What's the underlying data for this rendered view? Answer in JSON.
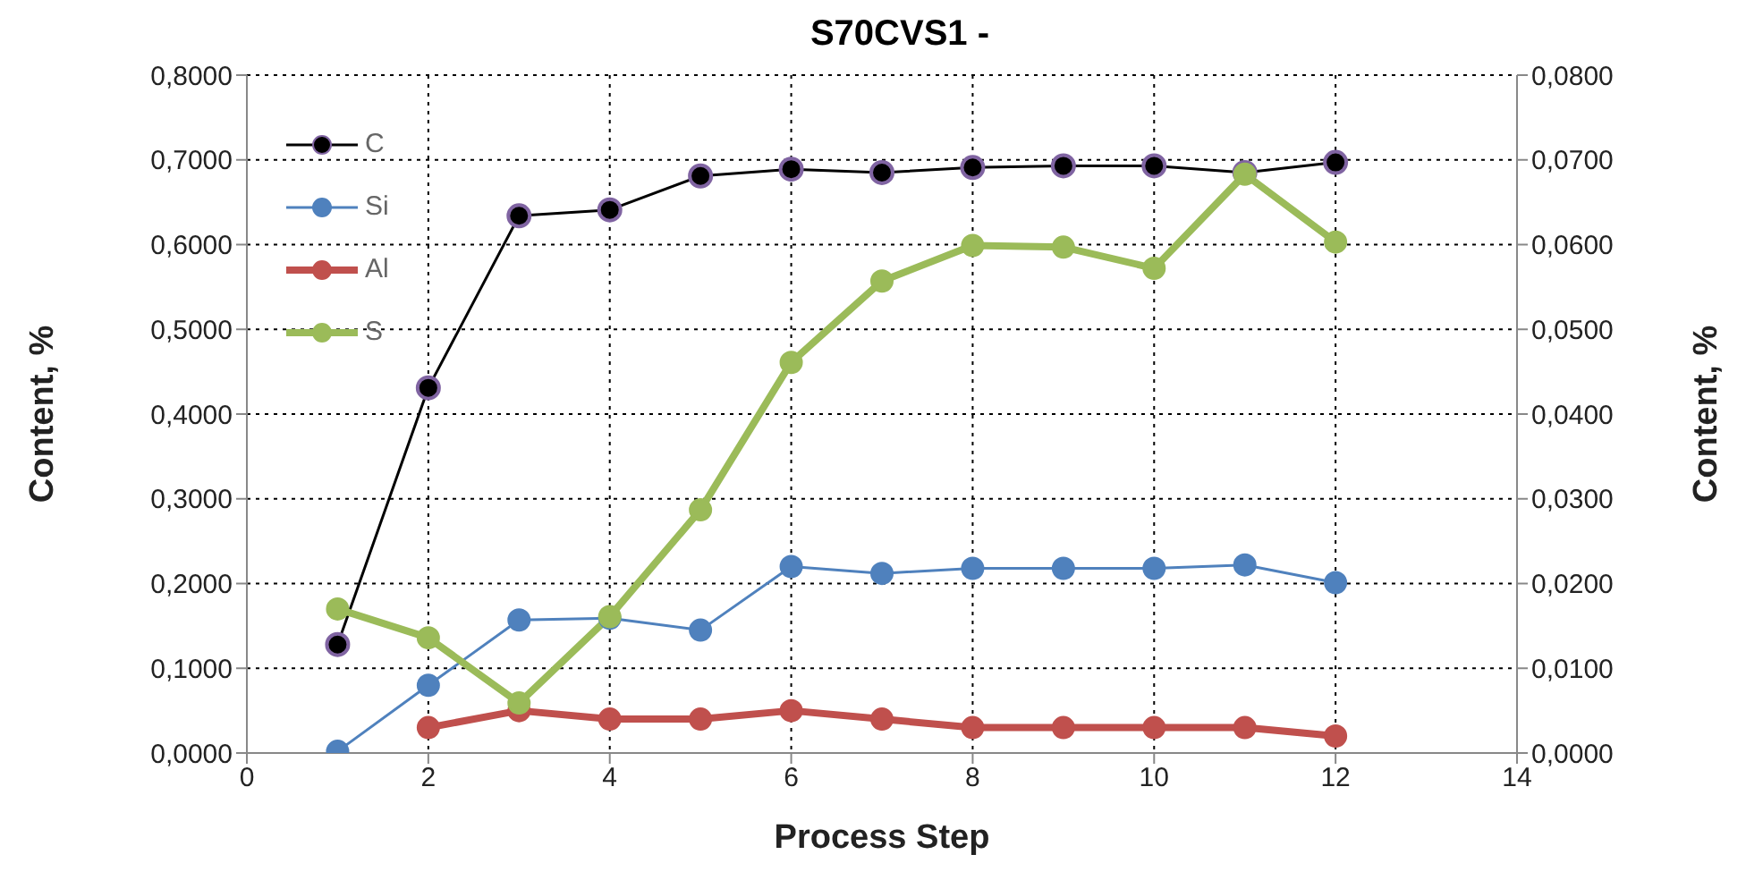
{
  "chart_data": {
    "type": "line",
    "title": "S70CVS1 -",
    "xlabel": "Process Step",
    "ylabel": "Content, %",
    "y2label": "Content, %",
    "x": [
      1,
      2,
      3,
      4,
      5,
      6,
      7,
      8,
      9,
      10,
      11,
      12
    ],
    "xlim": [
      0,
      14
    ],
    "xticks": [
      0,
      2,
      4,
      6,
      8,
      10,
      12,
      14
    ],
    "ylim": [
      0,
      0.8
    ],
    "yticks": [
      {
        "value": 0,
        "label": "0,0000"
      },
      {
        "value": 0.1,
        "label": "0,1000"
      },
      {
        "value": 0.2,
        "label": "0,2000"
      },
      {
        "value": 0.3,
        "label": "0,3000"
      },
      {
        "value": 0.4,
        "label": "0,4000"
      },
      {
        "value": 0.5,
        "label": "0,5000"
      },
      {
        "value": 0.6,
        "label": "0,6000"
      },
      {
        "value": 0.7,
        "label": "0,7000"
      },
      {
        "value": 0.8,
        "label": "0,8000"
      }
    ],
    "y2lim": [
      0,
      0.08
    ],
    "y2ticks": [
      {
        "value": 0,
        "label": "0,0000"
      },
      {
        "value": 0.01,
        "label": "0,0100"
      },
      {
        "value": 0.02,
        "label": "0,0200"
      },
      {
        "value": 0.03,
        "label": "0,0300"
      },
      {
        "value": 0.04,
        "label": "0,0400"
      },
      {
        "value": 0.05,
        "label": "0,0500"
      },
      {
        "value": 0.06,
        "label": "0,0600"
      },
      {
        "value": 0.07,
        "label": "0,0700"
      },
      {
        "value": 0.08,
        "label": "0,0800"
      }
    ],
    "grid": true,
    "legend": "top left",
    "marker": "circle",
    "series": [
      {
        "name": "C",
        "color": "#000000",
        "values": [
          0.128,
          0.431,
          0.634,
          0.641,
          0.681,
          0.689,
          0.685,
          0.691,
          0.693,
          0.693,
          0.685,
          0.697
        ]
      },
      {
        "name": "Si",
        "color": "#4f81bd",
        "values": [
          0.002,
          0.08,
          0.157,
          0.159,
          0.145,
          0.22,
          0.212,
          0.218,
          0.218,
          0.218,
          0.222,
          0.201
        ]
      },
      {
        "name": "Al",
        "color": "#c0504d",
        "values": [
          null,
          0.03,
          0.05,
          0.04,
          0.04,
          0.05,
          0.04,
          0.03,
          0.03,
          0.03,
          0.03,
          0.02
        ]
      },
      {
        "name": "S",
        "color": "#9bbb59",
        "axis": "y2",
        "values": [
          0.017,
          0.0136,
          0.0059,
          0.0161,
          0.0287,
          0.0461,
          0.0557,
          0.0599,
          0.0597,
          0.0572,
          0.0683,
          0.0603
        ]
      }
    ]
  }
}
